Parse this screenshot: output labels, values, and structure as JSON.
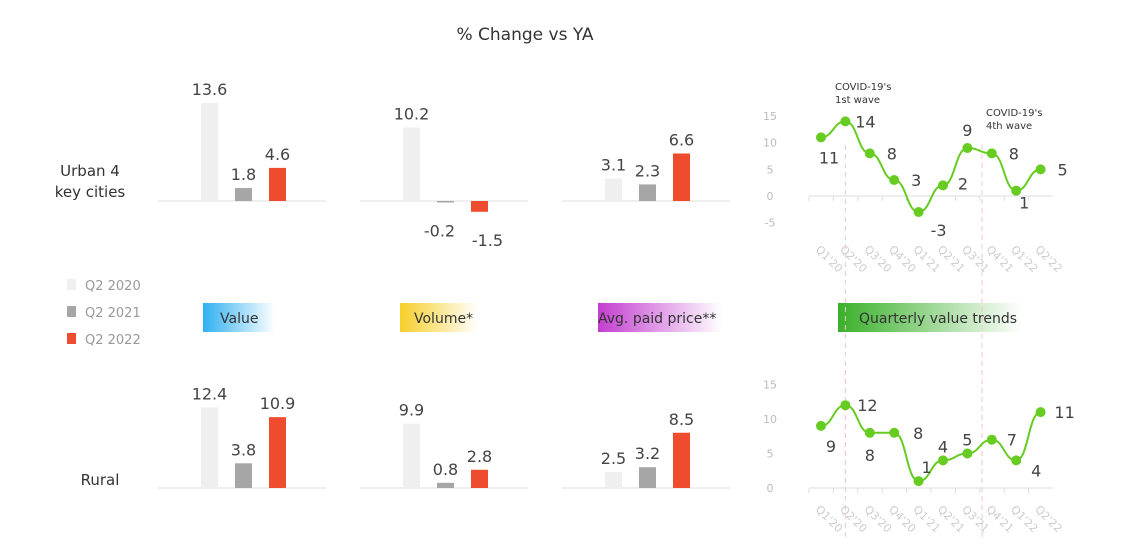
{
  "title": "% Change vs YA",
  "colors": {
    "q2_2020": "#efefef",
    "q2_2021": "#a6a6a6",
    "q2_2022": "#ef4b2f",
    "line": "#66cc22",
    "dash": "#f4c4cc"
  },
  "legend": [
    "Q2 2020",
    "Q2 2021",
    "Q2 2022"
  ],
  "row_labels": {
    "urban": [
      "Urban 4",
      "key cities"
    ],
    "rural": "Rural"
  },
  "section_labels": [
    {
      "text": "Value",
      "color": "#2fb0f0"
    },
    {
      "text": "Volume*",
      "color": "#f6cf2a"
    },
    {
      "text": "Avg. paid price**",
      "color": "#c33ed0"
    },
    {
      "text": "Quarterly value trends",
      "color": "#3ab02a"
    }
  ],
  "chart_data": [
    {
      "type": "bar",
      "row": "Urban 4 key cities",
      "metric": "Value",
      "series": [
        "Q2 2020",
        "Q2 2021",
        "Q2 2022"
      ],
      "values": [
        13.6,
        1.8,
        4.6
      ]
    },
    {
      "type": "bar",
      "row": "Urban 4 key cities",
      "metric": "Volume*",
      "series": [
        "Q2 2020",
        "Q2 2021",
        "Q2 2022"
      ],
      "values": [
        10.2,
        -0.2,
        -1.5
      ]
    },
    {
      "type": "bar",
      "row": "Urban 4 key cities",
      "metric": "Avg. paid price**",
      "series": [
        "Q2 2020",
        "Q2 2021",
        "Q2 2022"
      ],
      "values": [
        3.1,
        2.3,
        6.6
      ]
    },
    {
      "type": "bar",
      "row": "Rural",
      "metric": "Value",
      "series": [
        "Q2 2020",
        "Q2 2021",
        "Q2 2022"
      ],
      "values": [
        12.4,
        3.8,
        10.9
      ]
    },
    {
      "type": "bar",
      "row": "Rural",
      "metric": "Volume*",
      "series": [
        "Q2 2020",
        "Q2 2021",
        "Q2 2022"
      ],
      "values": [
        9.9,
        0.8,
        2.8
      ]
    },
    {
      "type": "bar",
      "row": "Rural",
      "metric": "Avg. paid price**",
      "series": [
        "Q2 2020",
        "Q2 2021",
        "Q2 2022"
      ],
      "values": [
        2.5,
        3.2,
        8.5
      ]
    },
    {
      "type": "line",
      "row": "Urban 4 key cities",
      "title": "Quarterly value trends",
      "x": [
        "Q1'20",
        "Q2'20",
        "Q3'20",
        "Q4'20",
        "Q1'21",
        "Q2'21",
        "Q3'21",
        "Q4'21",
        "Q1'22",
        "Q2'22"
      ],
      "values": [
        11,
        14,
        8,
        3,
        -3,
        2,
        9,
        8,
        1,
        5
      ],
      "yticks": [
        -5,
        0,
        5,
        10,
        15
      ],
      "ylim": [
        -5,
        15
      ],
      "annotations": [
        {
          "at": "Q2'20",
          "lines": [
            "COVID-19's",
            "1st wave"
          ]
        },
        {
          "at": "Q3'21/Q4'21",
          "lines": [
            "COVID-19's",
            "4th wave"
          ]
        }
      ]
    },
    {
      "type": "line",
      "row": "Rural",
      "title": "Quarterly value trends",
      "x": [
        "Q1'20",
        "Q2'20",
        "Q3'20",
        "Q4'20",
        "Q1'21",
        "Q2'21",
        "Q3'21",
        "Q4'21",
        "Q1'22",
        "Q2'22"
      ],
      "values": [
        9,
        12,
        8,
        8,
        1,
        4,
        5,
        7,
        4,
        11
      ],
      "yticks": [
        0,
        5,
        10,
        15
      ],
      "ylim": [
        0,
        15
      ]
    }
  ]
}
